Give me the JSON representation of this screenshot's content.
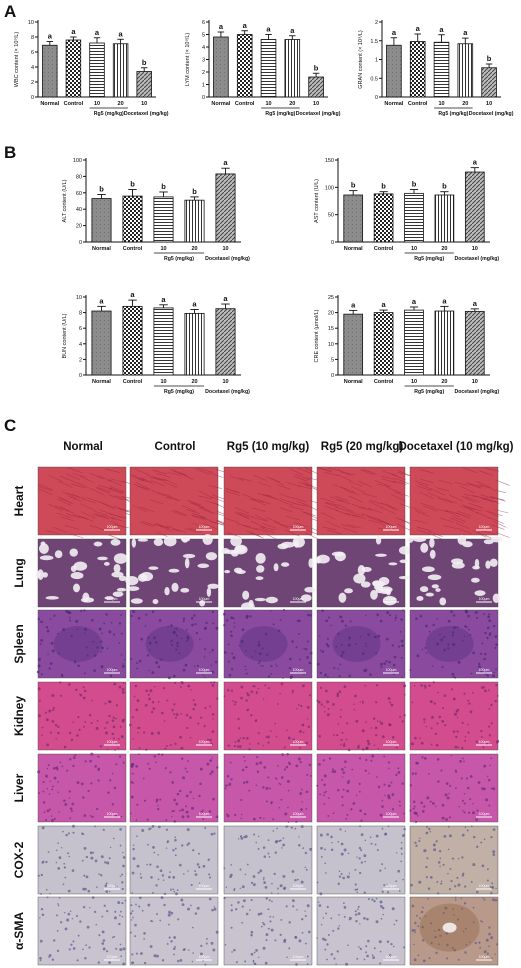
{
  "panels": {
    "a": "A",
    "b": "B",
    "c": "C"
  },
  "colors": {
    "normal": "#8a8a8a",
    "control": "#ffffff",
    "rg5_10": "#e6e6e6",
    "rg5_20": "#d4d4d4",
    "docetaxel": "#9a9a9a",
    "axis": "#111111"
  },
  "chart_data": [
    {
      "type": "bar",
      "panel": "A",
      "ylabel": "WBC content (× 10⁹/L)",
      "categories": [
        "Normal",
        "Control",
        "10",
        "20",
        "10"
      ],
      "group_labels": [
        "Rg5 (mg/kg)",
        "Docetaxel (mg/kg)"
      ],
      "values": [
        6.9,
        7.6,
        7.2,
        7.1,
        3.4
      ],
      "errors": [
        0.5,
        0.4,
        0.7,
        0.6,
        0.5
      ],
      "letters": [
        "a",
        "a",
        "a",
        "a",
        "b"
      ],
      "ylim": [
        0,
        10
      ],
      "yticks": [
        0,
        2,
        4,
        6,
        8,
        10
      ]
    },
    {
      "type": "bar",
      "panel": "A",
      "ylabel": "LYM content (× 10⁹/L)",
      "categories": [
        "Normal",
        "Control",
        "10",
        "20",
        "10"
      ],
      "group_labels": [
        "Rg5 (mg/kg)",
        "Docetaxel (mg/kg)"
      ],
      "values": [
        4.8,
        5.0,
        4.6,
        4.6,
        1.6
      ],
      "errors": [
        0.4,
        0.3,
        0.4,
        0.3,
        0.3
      ],
      "letters": [
        "a",
        "a",
        "a",
        "a",
        "b"
      ],
      "ylim": [
        0,
        6
      ],
      "yticks": [
        0,
        1,
        2,
        3,
        4,
        5,
        6
      ]
    },
    {
      "type": "bar",
      "panel": "A",
      "ylabel": "GRAN content (× 10⁹/L)",
      "categories": [
        "Normal",
        "Control",
        "10",
        "20",
        "10"
      ],
      "group_labels": [
        "Rg5 (mg/kg)",
        "Docetaxel (mg/kg)"
      ],
      "values": [
        1.38,
        1.48,
        1.46,
        1.42,
        0.78
      ],
      "errors": [
        0.2,
        0.2,
        0.2,
        0.15,
        0.1
      ],
      "letters": [
        "a",
        "a",
        "a",
        "a",
        "b"
      ],
      "ylim": [
        0,
        2.0
      ],
      "yticks": [
        0.0,
        0.5,
        1.0,
        1.5,
        2.0
      ]
    },
    {
      "type": "bar",
      "panel": "B",
      "ylabel": "ALT content (U/L)",
      "categories": [
        "Normal",
        "Control",
        "10",
        "20",
        "10"
      ],
      "group_labels": [
        "Rg5 (mg/kg)",
        "Docetaxel (mg/kg)"
      ],
      "values": [
        53,
        56,
        55,
        51,
        83
      ],
      "errors": [
        5,
        8,
        6,
        4,
        7
      ],
      "letters": [
        "b",
        "b",
        "b",
        "b",
        "a"
      ],
      "ylim": [
        0,
        100
      ],
      "yticks": [
        0,
        20,
        40,
        60,
        80,
        100
      ]
    },
    {
      "type": "bar",
      "panel": "B",
      "ylabel": "AST content (U/L)",
      "categories": [
        "Normal",
        "Control",
        "10",
        "20",
        "10"
      ],
      "group_labels": [
        "Rg5 (mg/kg)",
        "Docetaxel (mg/kg)"
      ],
      "values": [
        86,
        88,
        89,
        86,
        128
      ],
      "errors": [
        8,
        4,
        7,
        6,
        8
      ],
      "letters": [
        "b",
        "b",
        "b",
        "b",
        "a"
      ],
      "ylim": [
        0,
        150
      ],
      "yticks": [
        0,
        50,
        100,
        150
      ]
    },
    {
      "type": "bar",
      "panel": "B",
      "ylabel": "BUN content (U/L)",
      "categories": [
        "Normal",
        "Control",
        "10",
        "20",
        "10"
      ],
      "group_labels": [
        "Rg5 (mg/kg)",
        "Docetaxel (mg/kg)"
      ],
      "values": [
        8.2,
        8.8,
        8.6,
        7.9,
        8.5
      ],
      "errors": [
        0.6,
        0.8,
        0.4,
        0.5,
        0.6
      ],
      "letters": [
        "a",
        "a",
        "a",
        "a",
        "a"
      ],
      "ylim": [
        0,
        10
      ],
      "yticks": [
        0,
        2,
        4,
        6,
        8,
        10
      ]
    },
    {
      "type": "bar",
      "panel": "B",
      "ylabel": "CRE content (μmol/L)",
      "categories": [
        "Normal",
        "Control",
        "10",
        "20",
        "10"
      ],
      "group_labels": [
        "Rg5 (mg/kg)",
        "Docetaxel (mg/kg)"
      ],
      "values": [
        19.5,
        20.0,
        20.8,
        20.5,
        20.4
      ],
      "errors": [
        1.2,
        0.8,
        1.0,
        1.5,
        0.8
      ],
      "letters": [
        "a",
        "a",
        "a",
        "a",
        "a"
      ],
      "ylim": [
        0,
        25
      ],
      "yticks": [
        0,
        5,
        10,
        15,
        20,
        25
      ]
    }
  ],
  "histology": {
    "columns": [
      "Normal",
      "Control",
      "Rg5 (10 mg/kg)",
      "Rg5 (20 mg/kg)",
      "Docetaxel (10 mg/kg)"
    ],
    "rows": [
      {
        "label": "Heart",
        "stain": "he",
        "base": "#cf4a58",
        "dots": "#7a1a3a"
      },
      {
        "label": "Lung",
        "stain": "lung",
        "base": "#6e4574",
        "dots": "#ffffff"
      },
      {
        "label": "Spleen",
        "stain": "he",
        "base": "#8a4a9e",
        "dots": "#4a2a6e"
      },
      {
        "label": "Kidney",
        "stain": "he",
        "base": "#d24c8e",
        "dots": "#7a2a6e"
      },
      {
        "label": "Liver",
        "stain": "he",
        "base": "#c757a9",
        "dots": "#6a2a7e"
      },
      {
        "label": "COX-2",
        "stain": "ihc",
        "base": "#c6c2cd",
        "dots": "#5a5a8a"
      },
      {
        "label": "α-SMA",
        "stain": "ihc",
        "base": "#c8c3cf",
        "dots": "#5a5a8a"
      }
    ],
    "scale_bar": "100μm"
  }
}
